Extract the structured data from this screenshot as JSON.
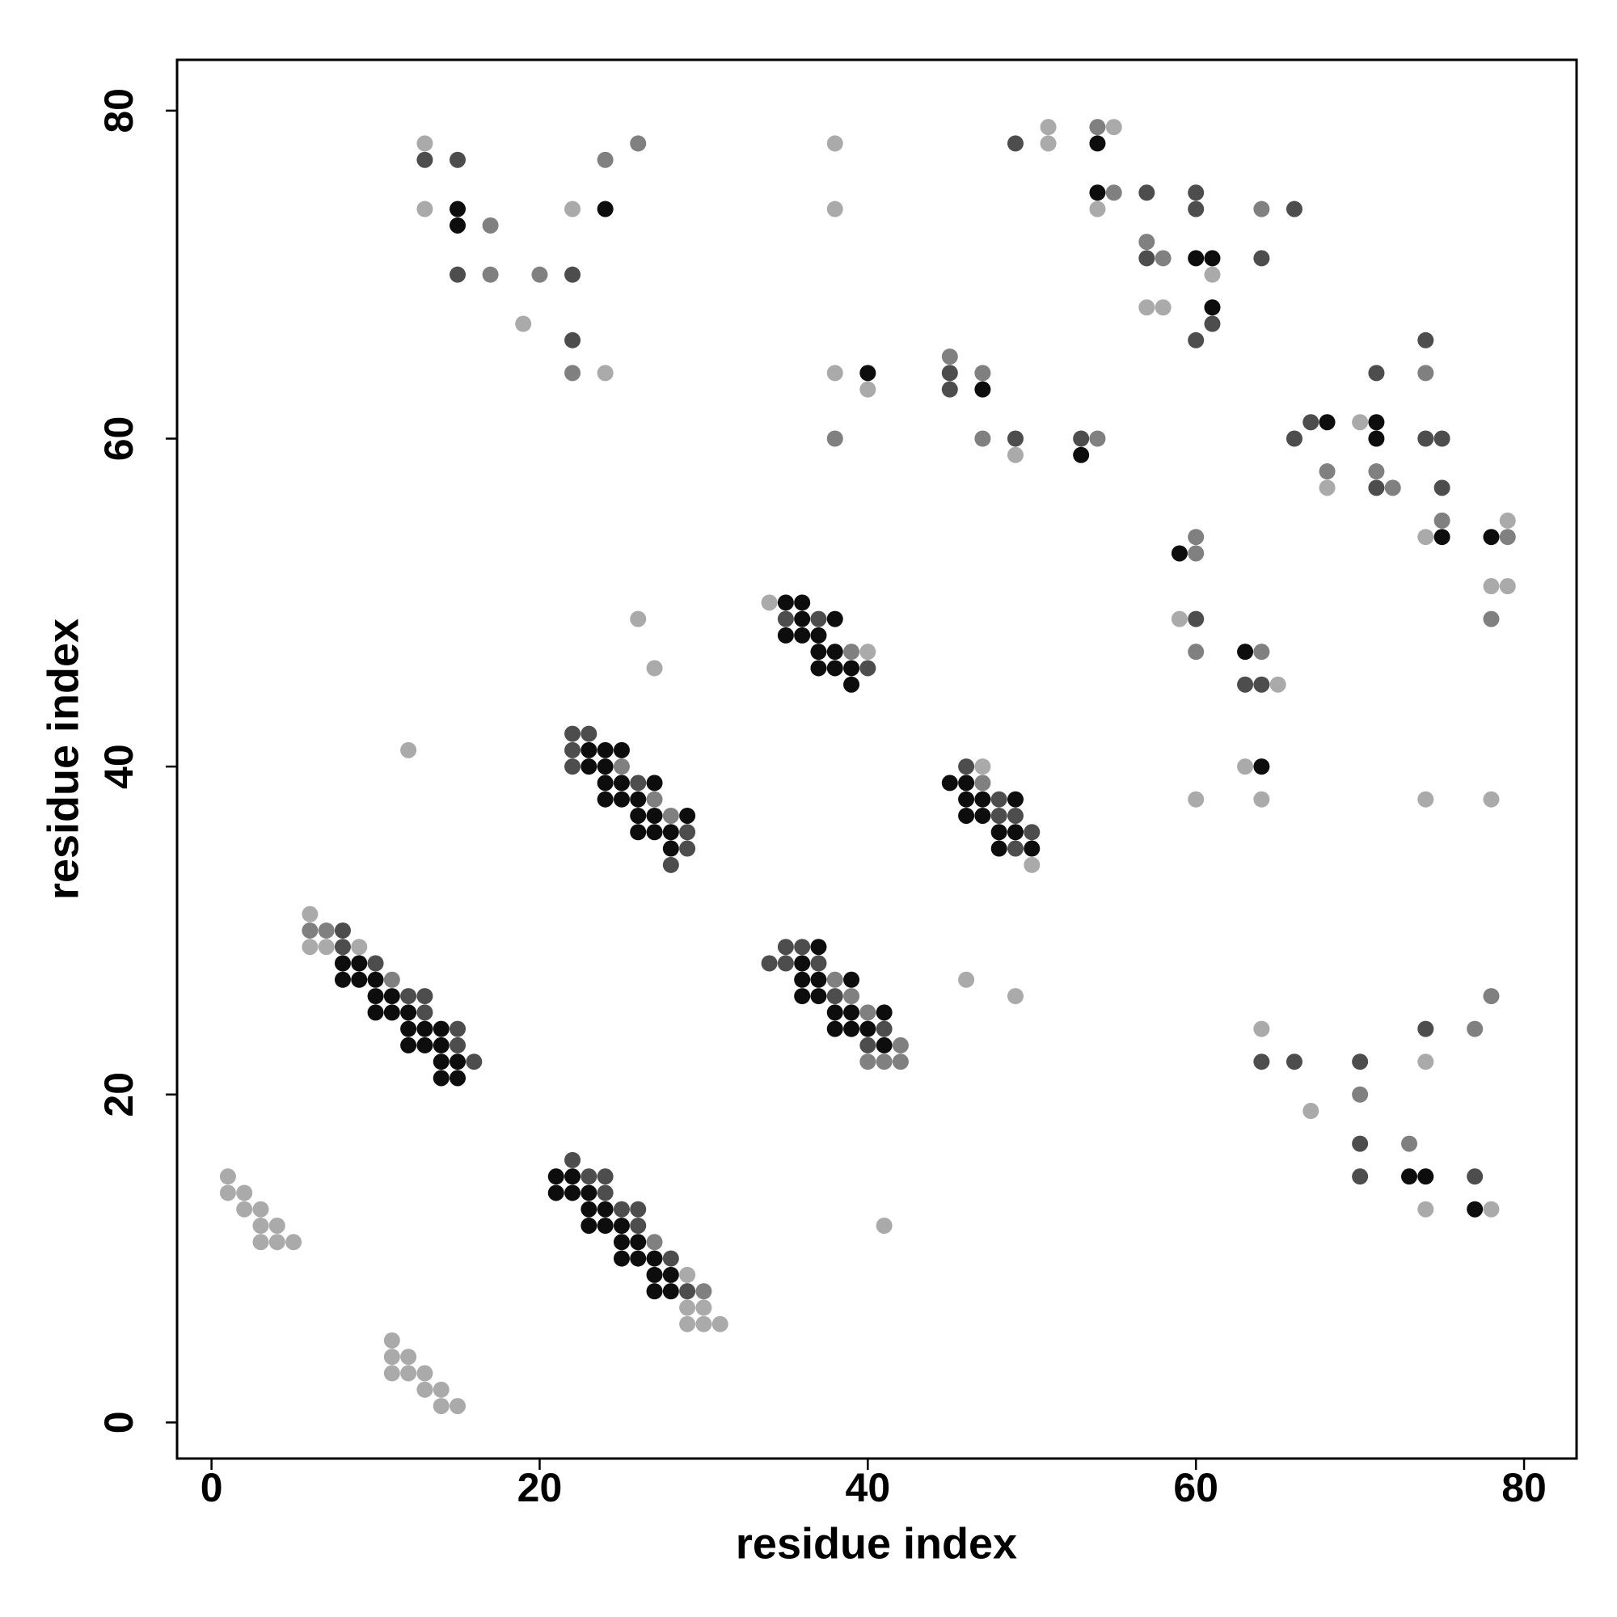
{
  "chart_data": {
    "type": "scatter",
    "xlabel": "residue index",
    "ylabel": "residue index",
    "xlim": [
      -2.1,
      83.2
    ],
    "ylim": [
      -2.2,
      83.1
    ],
    "xticks": [
      0,
      20,
      40,
      60,
      80
    ],
    "yticks": [
      0,
      20,
      40,
      60,
      80
    ],
    "grid": false,
    "series": [
      {
        "color": "#aaaaaa",
        "x": [
          1,
          1,
          2,
          2,
          3,
          3,
          3,
          4,
          4,
          5,
          11,
          11,
          11,
          12,
          12,
          13,
          13,
          14,
          14,
          15,
          6,
          6,
          7,
          9,
          29,
          29,
          29,
          30,
          30,
          31,
          34,
          40,
          47,
          50,
          12,
          26,
          27,
          46,
          49,
          41,
          13,
          13,
          19,
          22,
          24,
          38,
          38,
          38,
          40,
          49,
          51,
          51,
          54,
          55,
          57,
          58,
          61,
          59,
          65,
          63,
          60,
          64,
          68,
          70,
          74,
          79,
          78,
          79,
          74,
          78,
          64,
          67,
          74,
          74,
          78
        ],
        "values": [
          15,
          14,
          14,
          13,
          13,
          12,
          11,
          12,
          11,
          11,
          5,
          4,
          3,
          4,
          3,
          3,
          2,
          2,
          1,
          1,
          31,
          29,
          29,
          29,
          9,
          7,
          6,
          7,
          6,
          6,
          50,
          47,
          40,
          34,
          41,
          49,
          46,
          27,
          26,
          12,
          78,
          74,
          67,
          74,
          64,
          78,
          74,
          64,
          63,
          59,
          79,
          78,
          74,
          79,
          68,
          68,
          70,
          49,
          45,
          40,
          38,
          38,
          57,
          61,
          54,
          55,
          51,
          51,
          38,
          38,
          24,
          19,
          13,
          22,
          13
        ]
      },
      {
        "color": "#808080",
        "x": [
          6,
          7,
          11,
          27,
          30,
          27,
          25,
          28,
          38,
          39,
          40,
          40,
          41,
          42,
          42,
          39,
          47,
          17,
          17,
          20,
          22,
          24,
          26,
          38,
          45,
          47,
          47,
          54,
          55,
          54,
          57,
          58,
          64,
          60,
          60,
          60,
          64,
          68,
          71,
          72,
          74,
          75,
          79,
          78,
          70,
          73,
          77,
          78
        ],
        "values": [
          30,
          30,
          27,
          11,
          8,
          38,
          40,
          37,
          27,
          26,
          25,
          22,
          22,
          23,
          22,
          47,
          39,
          73,
          70,
          70,
          64,
          77,
          78,
          60,
          65,
          64,
          60,
          79,
          75,
          60,
          72,
          71,
          74,
          54,
          53,
          47,
          47,
          58,
          58,
          57,
          64,
          55,
          54,
          49,
          20,
          17,
          24,
          26
        ]
      },
      {
        "color": "#4d4d4d",
        "x": [
          8,
          8,
          10,
          12,
          13,
          13,
          15,
          15,
          16,
          22,
          23,
          24,
          24,
          25,
          26,
          26,
          28,
          29,
          22,
          22,
          22,
          23,
          26,
          28,
          29,
          29,
          34,
          35,
          35,
          36,
          37,
          38,
          40,
          41,
          35,
          37,
          40,
          46,
          48,
          48,
          49,
          49,
          50,
          13,
          15,
          15,
          22,
          22,
          45,
          45,
          49,
          49,
          53,
          57,
          57,
          60,
          60,
          60,
          61,
          64,
          66,
          60,
          63,
          64,
          66,
          67,
          71,
          71,
          74,
          74,
          75,
          75,
          64,
          66,
          70,
          70,
          70,
          74,
          77
        ],
        "values": [
          30,
          29,
          28,
          26,
          26,
          25,
          24,
          23,
          22,
          16,
          15,
          15,
          14,
          13,
          13,
          12,
          10,
          8,
          42,
          41,
          40,
          42,
          39,
          34,
          36,
          35,
          28,
          29,
          28,
          29,
          28,
          26,
          23,
          24,
          49,
          49,
          46,
          40,
          38,
          37,
          37,
          35,
          36,
          77,
          77,
          70,
          70,
          66,
          64,
          63,
          78,
          60,
          60,
          75,
          71,
          75,
          74,
          66,
          67,
          71,
          74,
          49,
          45,
          45,
          60,
          61,
          57,
          64,
          66,
          60,
          60,
          57,
          22,
          22,
          22,
          17,
          15,
          24,
          15
        ]
      },
      {
        "color": "#0d0d0d",
        "x": [
          8,
          8,
          9,
          9,
          10,
          10,
          10,
          11,
          11,
          12,
          12,
          12,
          13,
          13,
          14,
          14,
          14,
          14,
          15,
          15,
          21,
          21,
          22,
          22,
          23,
          23,
          23,
          24,
          24,
          25,
          25,
          25,
          26,
          26,
          27,
          27,
          27,
          28,
          28,
          23,
          23,
          24,
          24,
          24,
          24,
          25,
          25,
          25,
          26,
          26,
          26,
          27,
          27,
          27,
          28,
          28,
          29,
          36,
          36,
          36,
          37,
          37,
          37,
          38,
          38,
          39,
          39,
          39,
          40,
          41,
          41,
          35,
          35,
          36,
          36,
          36,
          37,
          37,
          37,
          38,
          38,
          38,
          39,
          39,
          45,
          46,
          46,
          46,
          47,
          47,
          48,
          48,
          49,
          49,
          50,
          15,
          15,
          24,
          40,
          47,
          53,
          54,
          54,
          60,
          61,
          61,
          59,
          63,
          64,
          68,
          71,
          71,
          75,
          78,
          73,
          74,
          77
        ],
        "values": [
          28,
          27,
          28,
          27,
          27,
          26,
          25,
          26,
          25,
          25,
          24,
          23,
          24,
          23,
          24,
          23,
          22,
          21,
          22,
          21,
          15,
          14,
          15,
          14,
          14,
          13,
          12,
          13,
          12,
          12,
          11,
          10,
          11,
          10,
          10,
          9,
          8,
          9,
          8,
          41,
          40,
          41,
          40,
          39,
          38,
          41,
          39,
          38,
          38,
          37,
          36,
          39,
          37,
          36,
          36,
          35,
          37,
          28,
          27,
          26,
          29,
          27,
          26,
          25,
          24,
          27,
          25,
          24,
          24,
          25,
          23,
          50,
          48,
          50,
          49,
          48,
          48,
          47,
          46,
          49,
          47,
          46,
          46,
          45,
          39,
          39,
          38,
          37,
          38,
          37,
          36,
          35,
          38,
          36,
          35,
          74,
          73,
          74,
          64,
          63,
          59,
          78,
          75,
          71,
          71,
          68,
          53,
          47,
          40,
          61,
          61,
          60,
          54,
          54,
          15,
          15,
          13
        ]
      }
    ]
  }
}
